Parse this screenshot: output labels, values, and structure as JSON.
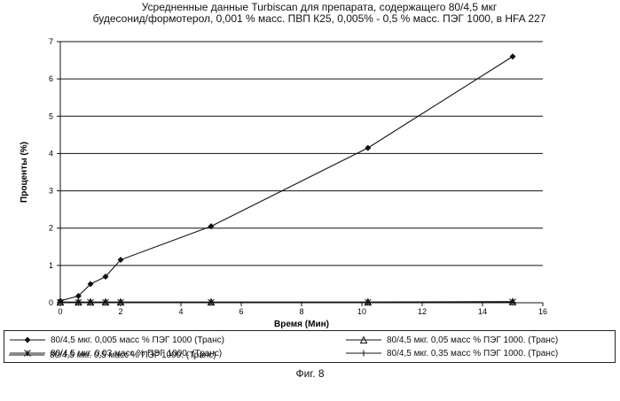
{
  "chart_data": {
    "type": "line",
    "title_line1": "Усредненные данные Turbiscan для препарата, содержащего 80/4,5 мкг",
    "title_line2": "будесонид/формотерол, 0,001 % масс. ПВП К25, 0,005% - 0,5 % масс. ПЭГ 1000, в HFA 227",
    "xlabel": "Время (Мин)",
    "ylabel": "Проценты (%)",
    "xlim": [
      0,
      16
    ],
    "ylim": [
      0,
      7
    ],
    "xticks": [
      "0",
      "2",
      "4",
      "6",
      "8",
      "10",
      "12",
      "14",
      "16"
    ],
    "yticks": [
      "0",
      "1",
      "2",
      "3",
      "4",
      "5",
      "6",
      "7"
    ],
    "grid": "horizontal",
    "legend_position": "bottom",
    "series": [
      {
        "name": "80/4,5 мкг. 0,005 масс % ПЭГ 1000 (Транс)",
        "marker": "diamond",
        "x": [
          0,
          0.6,
          1.0,
          1.5,
          2.0,
          5.0,
          10.2,
          15.0
        ],
        "y": [
          0.05,
          0.18,
          0.5,
          0.7,
          1.15,
          2.05,
          4.15,
          6.6
        ]
      },
      {
        "name": "80/4,5 мкг. 0,05 масс % ПЭГ 1000. (Транс)",
        "marker": "triangle",
        "x": [
          0,
          0.6,
          1.0,
          1.5,
          2.0,
          5.0,
          10.2,
          15.0
        ],
        "y": [
          0.02,
          0.02,
          0.02,
          0.02,
          0.02,
          0.02,
          0.02,
          0.03
        ]
      },
      {
        "name": "80/4,5 мкг. 0,03 масс % ПЭГ 1000. (Транс)",
        "marker": "asterisk",
        "x": [
          0,
          0.6,
          1.0,
          1.5,
          2.0,
          5.0,
          10.2,
          15.0
        ],
        "y": [
          0.01,
          0.01,
          0.01,
          0.01,
          0.01,
          0.01,
          0.01,
          0.02
        ]
      },
      {
        "name": "80/4,5 мкг. 0,35 масс % ПЭГ 1000. (Транс)",
        "marker": "plus",
        "x": [
          0,
          0.6,
          1.0,
          1.5,
          2.0,
          5.0,
          10.2,
          15.0
        ],
        "y": [
          0.01,
          0.01,
          0.01,
          0.01,
          0.01,
          0.01,
          0.01,
          0.01
        ]
      },
      {
        "name": "80/4,5 мкг. 0,5 масс % ПЭГ 1000. (Транс)",
        "marker": "none",
        "x": [
          0,
          0.6,
          1.0,
          1.5,
          2.0,
          5.0,
          10.2,
          15.0
        ],
        "y": [
          0.0,
          0.0,
          0.0,
          0.0,
          0.0,
          0.0,
          0.0,
          0.0
        ]
      }
    ]
  },
  "caption": "Фиг. 8"
}
